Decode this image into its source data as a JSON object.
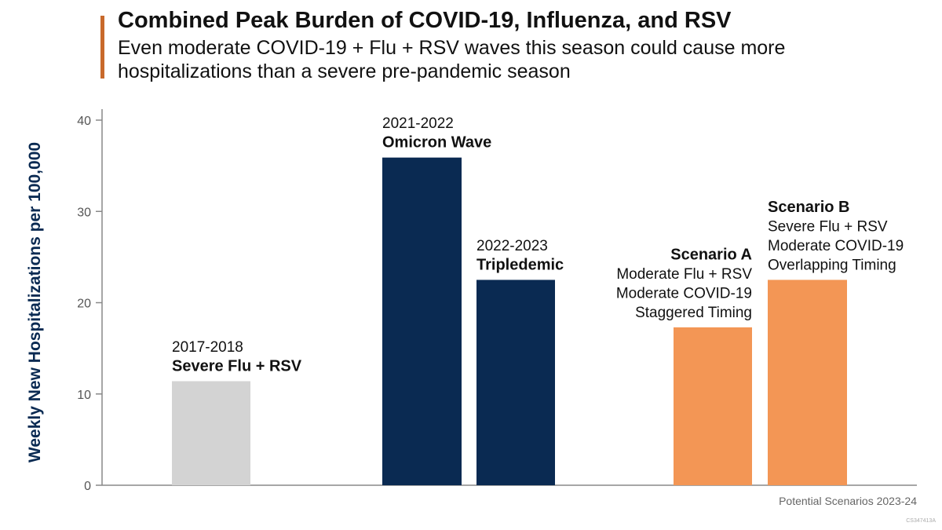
{
  "chart_data": {
    "type": "bar",
    "title": "Combined Peak Burden of COVID-19, Influenza, and RSV",
    "subtitle": "Even moderate COVID-19 + Flu + RSV waves this season could cause more hospitalizations than a severe pre-pandemic season",
    "ylabel": "Weekly New Hospitalizations per 100,000",
    "ylim": [
      0,
      40
    ],
    "yticks": [
      0,
      10,
      20,
      30,
      40
    ],
    "xlabel": "Potential Scenarios 2023-24",
    "bars": [
      {
        "id": "severe-flu-rsv",
        "season": "2017-2018",
        "name": "Severe Flu + RSV",
        "details": [],
        "value": 11.4,
        "color": "#d3d3d3"
      },
      {
        "id": "omicron-wave",
        "season": "2021-2022",
        "name": "Omicron Wave",
        "details": [],
        "value": 35.9,
        "color": "#0a2a52"
      },
      {
        "id": "tripledemic",
        "season": "2022-2023",
        "name": "Tripledemic",
        "details": [],
        "value": 22.5,
        "color": "#0a2a52"
      },
      {
        "id": "scenario-a",
        "season": "",
        "name": "Scenario A",
        "details": [
          "Moderate Flu + RSV",
          "Moderate COVID-19",
          "Staggered Timing"
        ],
        "value": 17.3,
        "color": "#f39655"
      },
      {
        "id": "scenario-b",
        "season": "",
        "name": "Scenario B",
        "details": [
          "Severe Flu + RSV",
          "Moderate COVID-19",
          "Overlapping Timing"
        ],
        "value": 22.5,
        "color": "#f39655"
      }
    ]
  },
  "footer": {
    "code": "CS347413A"
  },
  "colors": {
    "accent": "#c8692b",
    "navy": "#0a2a52",
    "orange": "#f39655",
    "gray": "#d3d3d3"
  }
}
